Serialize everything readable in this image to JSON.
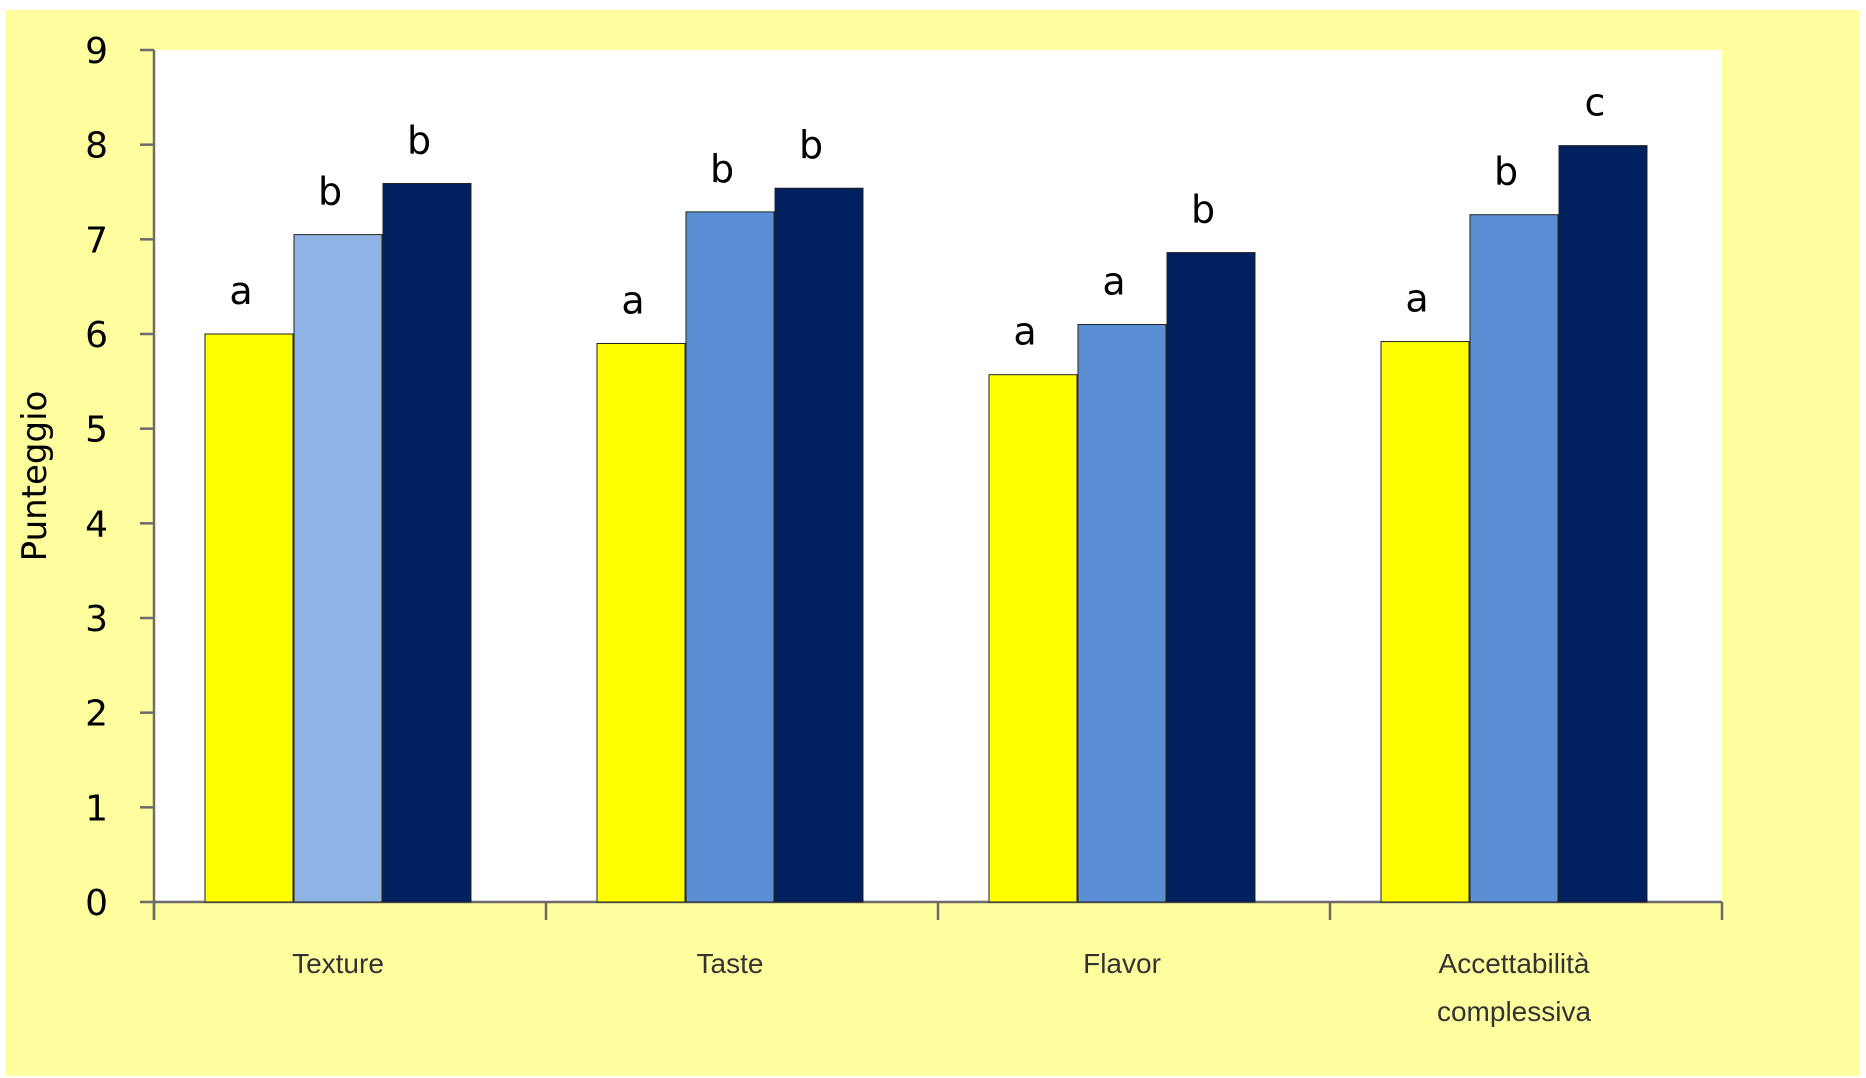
{
  "chart_data": {
    "type": "bar",
    "ylabel": "Punteggio",
    "xlabel": "",
    "ylim": [
      0,
      9
    ],
    "yticks": [
      "0",
      "1",
      "2",
      "3",
      "4",
      "5",
      "6",
      "7",
      "8",
      "9"
    ],
    "grid": false,
    "legend": "none",
    "categories": [
      [
        "Texture"
      ],
      [
        "Taste"
      ],
      [
        "Flavor"
      ],
      [
        "Accettabilità",
        "complessiva"
      ]
    ],
    "series": [
      {
        "color": "#ffff00",
        "values": [
          6.0,
          5.9,
          5.57,
          5.92
        ],
        "labels": [
          "a",
          "a",
          "a",
          "a"
        ]
      },
      {
        "color": "#5a8fd6",
        "category_colors": [
          "#8fb3e4",
          "#5a8fd6",
          "#5a8fd6",
          "#5a8fd6"
        ],
        "values": [
          7.05,
          7.29,
          6.1,
          7.26
        ],
        "labels": [
          "b",
          "b",
          "a",
          "b"
        ]
      },
      {
        "color": "#00205f",
        "values": [
          7.59,
          7.54,
          6.86,
          7.99
        ],
        "labels": [
          "b",
          "b",
          "b",
          "c"
        ]
      }
    ]
  },
  "colors": {
    "frame_background": "#fefe9e",
    "plot_background": "#ffffff",
    "axis": "#6b6b6b"
  }
}
